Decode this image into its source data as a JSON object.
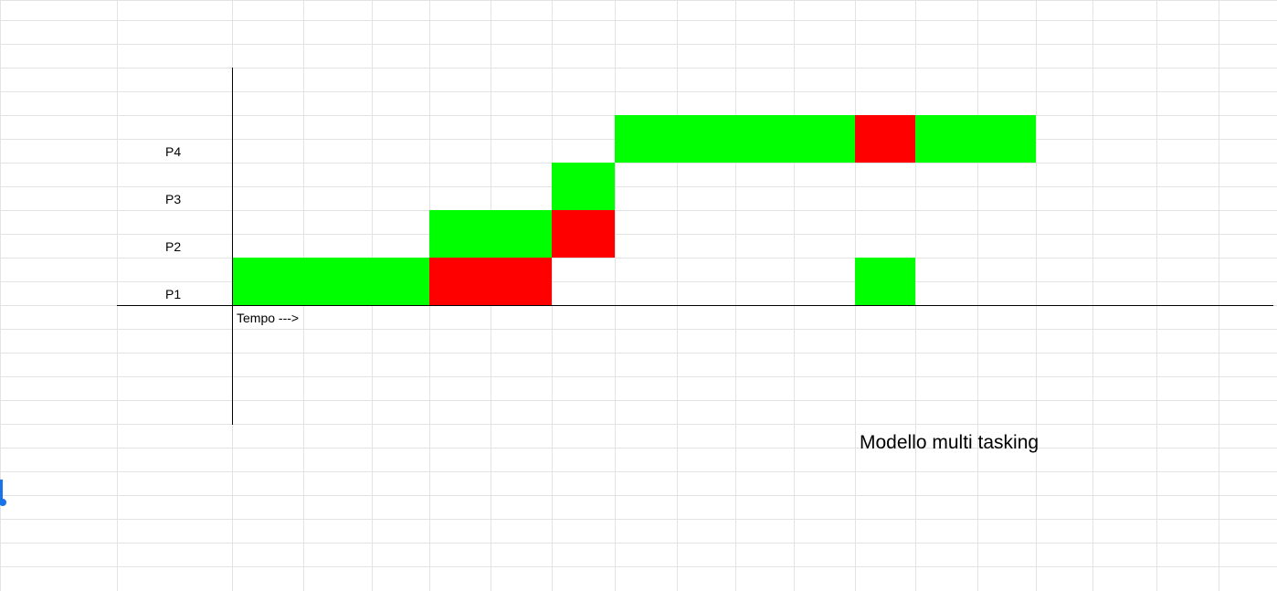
{
  "sheet": {
    "gridline_color": "#e2e3e3",
    "axis_color": "#000000",
    "selection_color": "#1a73e8"
  },
  "chart_data": {
    "type": "table",
    "title": "Modello multi tasking",
    "xlabel": "Tempo --->",
    "rows": [
      "P1",
      "P2",
      "P3",
      "P4"
    ],
    "legend_colors": {
      "green": "#00ff00",
      "red": "#ff0000"
    },
    "blocks": [
      {
        "row": "P1",
        "start": 0,
        "end": 3,
        "color": "green"
      },
      {
        "row": "P1",
        "start": 3,
        "end": 5,
        "color": "red"
      },
      {
        "row": "P2",
        "start": 3,
        "end": 5,
        "color": "green"
      },
      {
        "row": "P2",
        "start": 5,
        "end": 6,
        "color": "red"
      },
      {
        "row": "P3",
        "start": 5,
        "end": 6,
        "color": "green"
      },
      {
        "row": "P4",
        "start": 6,
        "end": 10,
        "color": "green"
      },
      {
        "row": "P4",
        "start": 10,
        "end": 11,
        "color": "red"
      },
      {
        "row": "P4",
        "start": 11,
        "end": 13,
        "color": "green"
      },
      {
        "row": "P1",
        "start": 10,
        "end": 11,
        "color": "green"
      }
    ]
  }
}
